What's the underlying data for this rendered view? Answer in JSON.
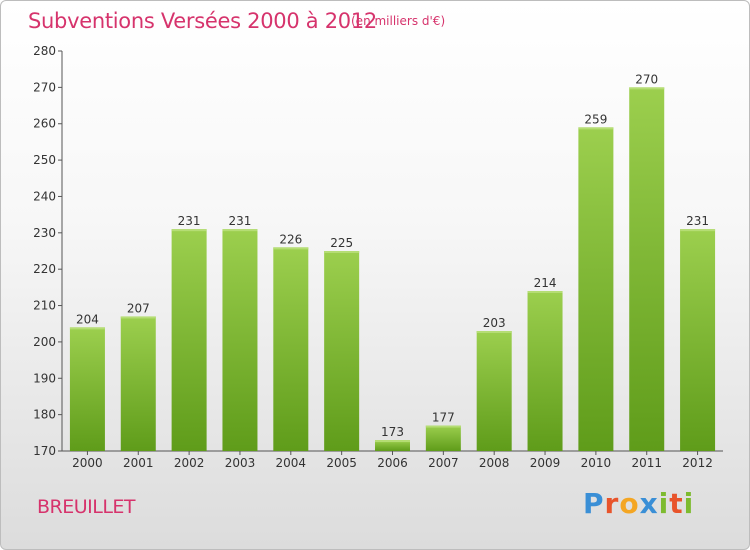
{
  "header": {
    "title": "Subventions Versées 2000 à 2012",
    "subtitle": "(en milliers d'€)"
  },
  "footer": {
    "commune": "BREUILLET",
    "brand_letters": [
      "P",
      "r",
      "o",
      "x",
      "i",
      "t",
      "i"
    ],
    "brand_colors": [
      "#3a8fd6",
      "#e8542b",
      "#f4a623",
      "#3a8fd6",
      "#7dbb2f",
      "#e8542b",
      "#7dbb2f"
    ]
  },
  "chart_data": {
    "type": "bar",
    "categories": [
      "2000",
      "2001",
      "2002",
      "2003",
      "2004",
      "2005",
      "2006",
      "2007",
      "2008",
      "2009",
      "2010",
      "2011",
      "2012"
    ],
    "values": [
      204,
      207,
      231,
      231,
      226,
      225,
      173,
      177,
      203,
      214,
      259,
      270,
      231
    ],
    "title": "Subventions Versées 2000 à 2012",
    "xlabel": "",
    "ylabel": "",
    "ylim": [
      170,
      280
    ],
    "yticks": [
      170,
      180,
      190,
      200,
      210,
      220,
      230,
      240,
      250,
      260,
      270,
      280
    ],
    "grid": false,
    "bar_color": "#7dbb2f"
  }
}
